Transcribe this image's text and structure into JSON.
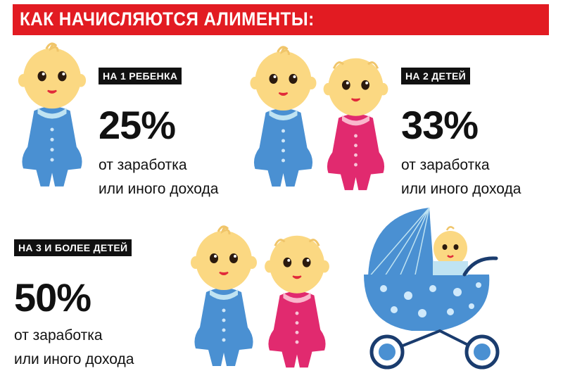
{
  "title": "КАК НАЧИСЛЯЮТСЯ АЛИМЕНТЫ:",
  "colors": {
    "accent": "#e21b22",
    "boy": "#4a90d2",
    "girl": "#e12a6f",
    "skin": "#fbd882"
  },
  "cases": [
    {
      "label": "НА 1 РЕБЕНКА",
      "percent": "25%",
      "line1": "от заработка",
      "line2": "или иного дохода"
    },
    {
      "label": "НА 2 ДЕТЕЙ",
      "percent": "33%",
      "line1": "от заработка",
      "line2": "или иного дохода"
    },
    {
      "label": "НА 3 И БОЛЕЕ ДЕТЕЙ",
      "percent": "50%",
      "line1": "от заработка",
      "line2": "или иного дохода"
    }
  ]
}
